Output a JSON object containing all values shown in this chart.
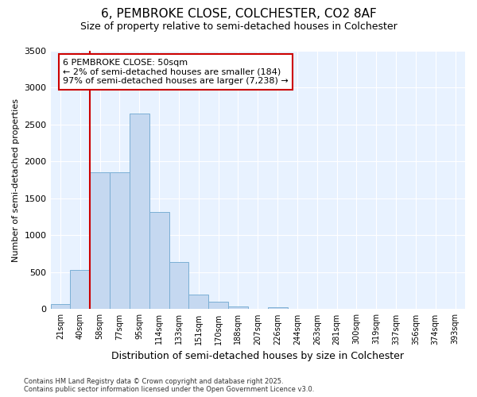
{
  "title1": "6, PEMBROKE CLOSE, COLCHESTER, CO2 8AF",
  "title2": "Size of property relative to semi-detached houses in Colchester",
  "xlabel": "Distribution of semi-detached houses by size in Colchester",
  "ylabel": "Number of semi-detached properties",
  "footer": "Contains HM Land Registry data © Crown copyright and database right 2025.\nContains public sector information licensed under the Open Government Licence v3.0.",
  "categories": [
    "21sqm",
    "40sqm",
    "58sqm",
    "77sqm",
    "95sqm",
    "114sqm",
    "133sqm",
    "151sqm",
    "170sqm",
    "188sqm",
    "207sqm",
    "226sqm",
    "244sqm",
    "263sqm",
    "281sqm",
    "300sqm",
    "319sqm",
    "337sqm",
    "356sqm",
    "374sqm",
    "393sqm"
  ],
  "values": [
    70,
    530,
    1850,
    1850,
    2650,
    1320,
    640,
    200,
    100,
    40,
    5,
    30,
    5,
    5,
    5,
    3,
    3,
    2,
    2,
    1,
    1
  ],
  "bar_color": "#c5d8f0",
  "bar_edge_color": "#7bafd4",
  "axes_bg_color": "#e8f2ff",
  "grid_color": "#ffffff",
  "fig_bg_color": "#ffffff",
  "property_line_x": 1.5,
  "property_line_color": "#cc0000",
  "annotation_text": "6 PEMBROKE CLOSE: 50sqm\n← 2% of semi-detached houses are smaller (184)\n97% of semi-detached houses are larger (7,238) →",
  "annotation_edge_color": "#cc0000",
  "ylim_max": 3500,
  "yticks": [
    0,
    500,
    1000,
    1500,
    2000,
    2500,
    3000,
    3500
  ]
}
